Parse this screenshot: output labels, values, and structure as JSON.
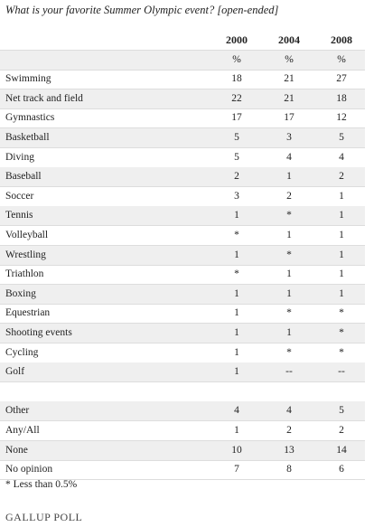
{
  "title": "What is your favorite Summer Olympic event? [open-ended]",
  "table": {
    "columns": [
      "2000",
      "2004",
      "2008"
    ],
    "units": [
      "%",
      "%",
      "%"
    ],
    "rows": [
      {
        "label": "Swimming",
        "values": [
          18,
          21,
          27
        ]
      },
      {
        "label": "Net track and field",
        "values": [
          22,
          21,
          18
        ]
      },
      {
        "label": "Gymnastics",
        "values": [
          17,
          17,
          12
        ]
      },
      {
        "label": "Basketball",
        "values": [
          5,
          3,
          5
        ]
      },
      {
        "label": "Diving",
        "values": [
          5,
          4,
          4
        ]
      },
      {
        "label": "Baseball",
        "values": [
          2,
          1,
          2
        ]
      },
      {
        "label": "Soccer",
        "values": [
          3,
          2,
          1
        ]
      },
      {
        "label": "Tennis",
        "values": [
          1,
          "*",
          1
        ]
      },
      {
        "label": "Volleyball",
        "values": [
          "*",
          1,
          1
        ]
      },
      {
        "label": "Wrestling",
        "values": [
          1,
          "*",
          1
        ]
      },
      {
        "label": "Triathlon",
        "values": [
          "*",
          1,
          1
        ]
      },
      {
        "label": "Boxing",
        "values": [
          1,
          1,
          1
        ]
      },
      {
        "label": "Equestrian",
        "values": [
          1,
          "*",
          "*"
        ]
      },
      {
        "label": "Shooting events",
        "values": [
          1,
          1,
          "*"
        ]
      },
      {
        "label": "Cycling",
        "values": [
          1,
          "*",
          "*"
        ]
      },
      {
        "label": "Golf",
        "values": [
          1,
          "--",
          "--"
        ]
      }
    ],
    "other_rows": [
      {
        "label": "Other",
        "values": [
          4,
          4,
          5
        ]
      },
      {
        "label": "Any/All",
        "values": [
          1,
          2,
          2
        ]
      },
      {
        "label": "None",
        "values": [
          10,
          13,
          14
        ]
      },
      {
        "label": "No opinion",
        "values": [
          7,
          8,
          6
        ]
      }
    ]
  },
  "footnote": "* Less than 0.5%",
  "source": "GALLUP POLL"
}
